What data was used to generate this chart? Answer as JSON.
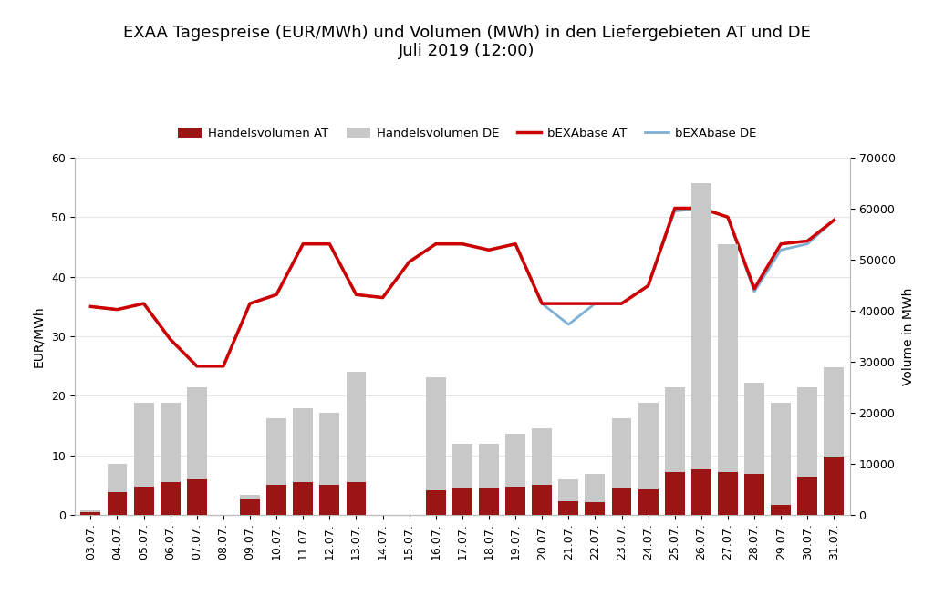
{
  "title": "EXAA Tagespreise (EUR/MWh) und Volumen (MWh) in den Liefergebieten AT und DE\nJuli 2019 (12:00)",
  "dates": [
    "03.07.",
    "04.07.",
    "05.07.",
    "06.07.",
    "07.07.",
    "08.07.",
    "09.07.",
    "10.07.",
    "11.07.",
    "12.07.",
    "13.07.",
    "14.07.",
    "15.07.",
    "16.07.",
    "17.07.",
    "18.07.",
    "19.07.",
    "20.07.",
    "21.07.",
    "22.07.",
    "23.07.",
    "24.07.",
    "25.07.",
    "26.07.",
    "27.07.",
    "28.07.",
    "29.07.",
    "30.07.",
    "31.07."
  ],
  "vol_AT": [
    500,
    4500,
    5500,
    6500,
    7000,
    0,
    3000,
    6000,
    6500,
    6000,
    6500,
    0,
    0,
    4800,
    5200,
    5200,
    5500,
    6000,
    2800,
    2500,
    5200,
    5000,
    8500,
    9000,
    8500,
    8000,
    2000,
    7500,
    11500
  ],
  "vol_DE": [
    1000,
    10000,
    22000,
    22000,
    25000,
    0,
    4000,
    19000,
    21000,
    20000,
    28000,
    0,
    0,
    27000,
    14000,
    14000,
    16000,
    17000,
    7000,
    8000,
    19000,
    22000,
    25000,
    65000,
    53000,
    26000,
    22000,
    25000,
    29000
  ],
  "price_AT": [
    35.0,
    34.5,
    35.5,
    29.5,
    25.0,
    25.0,
    35.5,
    37.0,
    45.5,
    45.5,
    37.0,
    36.5,
    42.5,
    45.5,
    45.5,
    44.5,
    45.5,
    35.5,
    35.5,
    35.5,
    35.5,
    38.5,
    51.5,
    51.5,
    50.0,
    38.0,
    45.5,
    46.0,
    49.5
  ],
  "price_DE": [
    35.0,
    34.5,
    35.5,
    29.5,
    25.0,
    25.0,
    35.5,
    37.0,
    45.5,
    45.5,
    37.0,
    36.5,
    42.5,
    45.5,
    45.5,
    44.5,
    45.5,
    35.5,
    32.0,
    35.5,
    35.5,
    38.5,
    51.0,
    51.5,
    50.0,
    37.5,
    44.5,
    45.5,
    49.5
  ],
  "ylabel_left": "EUR/MWh",
  "ylabel_right": "Volume in MWh",
  "ylim_left": [
    0,
    60
  ],
  "ylim_right": [
    0,
    70000
  ],
  "yticks_left": [
    0,
    10,
    20,
    30,
    40,
    50,
    60
  ],
  "yticks_right": [
    0,
    10000,
    20000,
    30000,
    40000,
    50000,
    60000,
    70000
  ],
  "color_vol_AT": "#9B1515",
  "color_vol_DE": "#C8C8C8",
  "color_price_AT": "#CC0000",
  "color_price_DE": "#7EB0D4",
  "background_color": "#FFFFFF",
  "grid_color": "#E5E5E5",
  "title_fontsize": 13,
  "legend_labels": [
    "Handelsvolumen AT",
    "Handelsvolumen DE",
    "bEXAbase AT",
    "bEXAbase DE"
  ]
}
